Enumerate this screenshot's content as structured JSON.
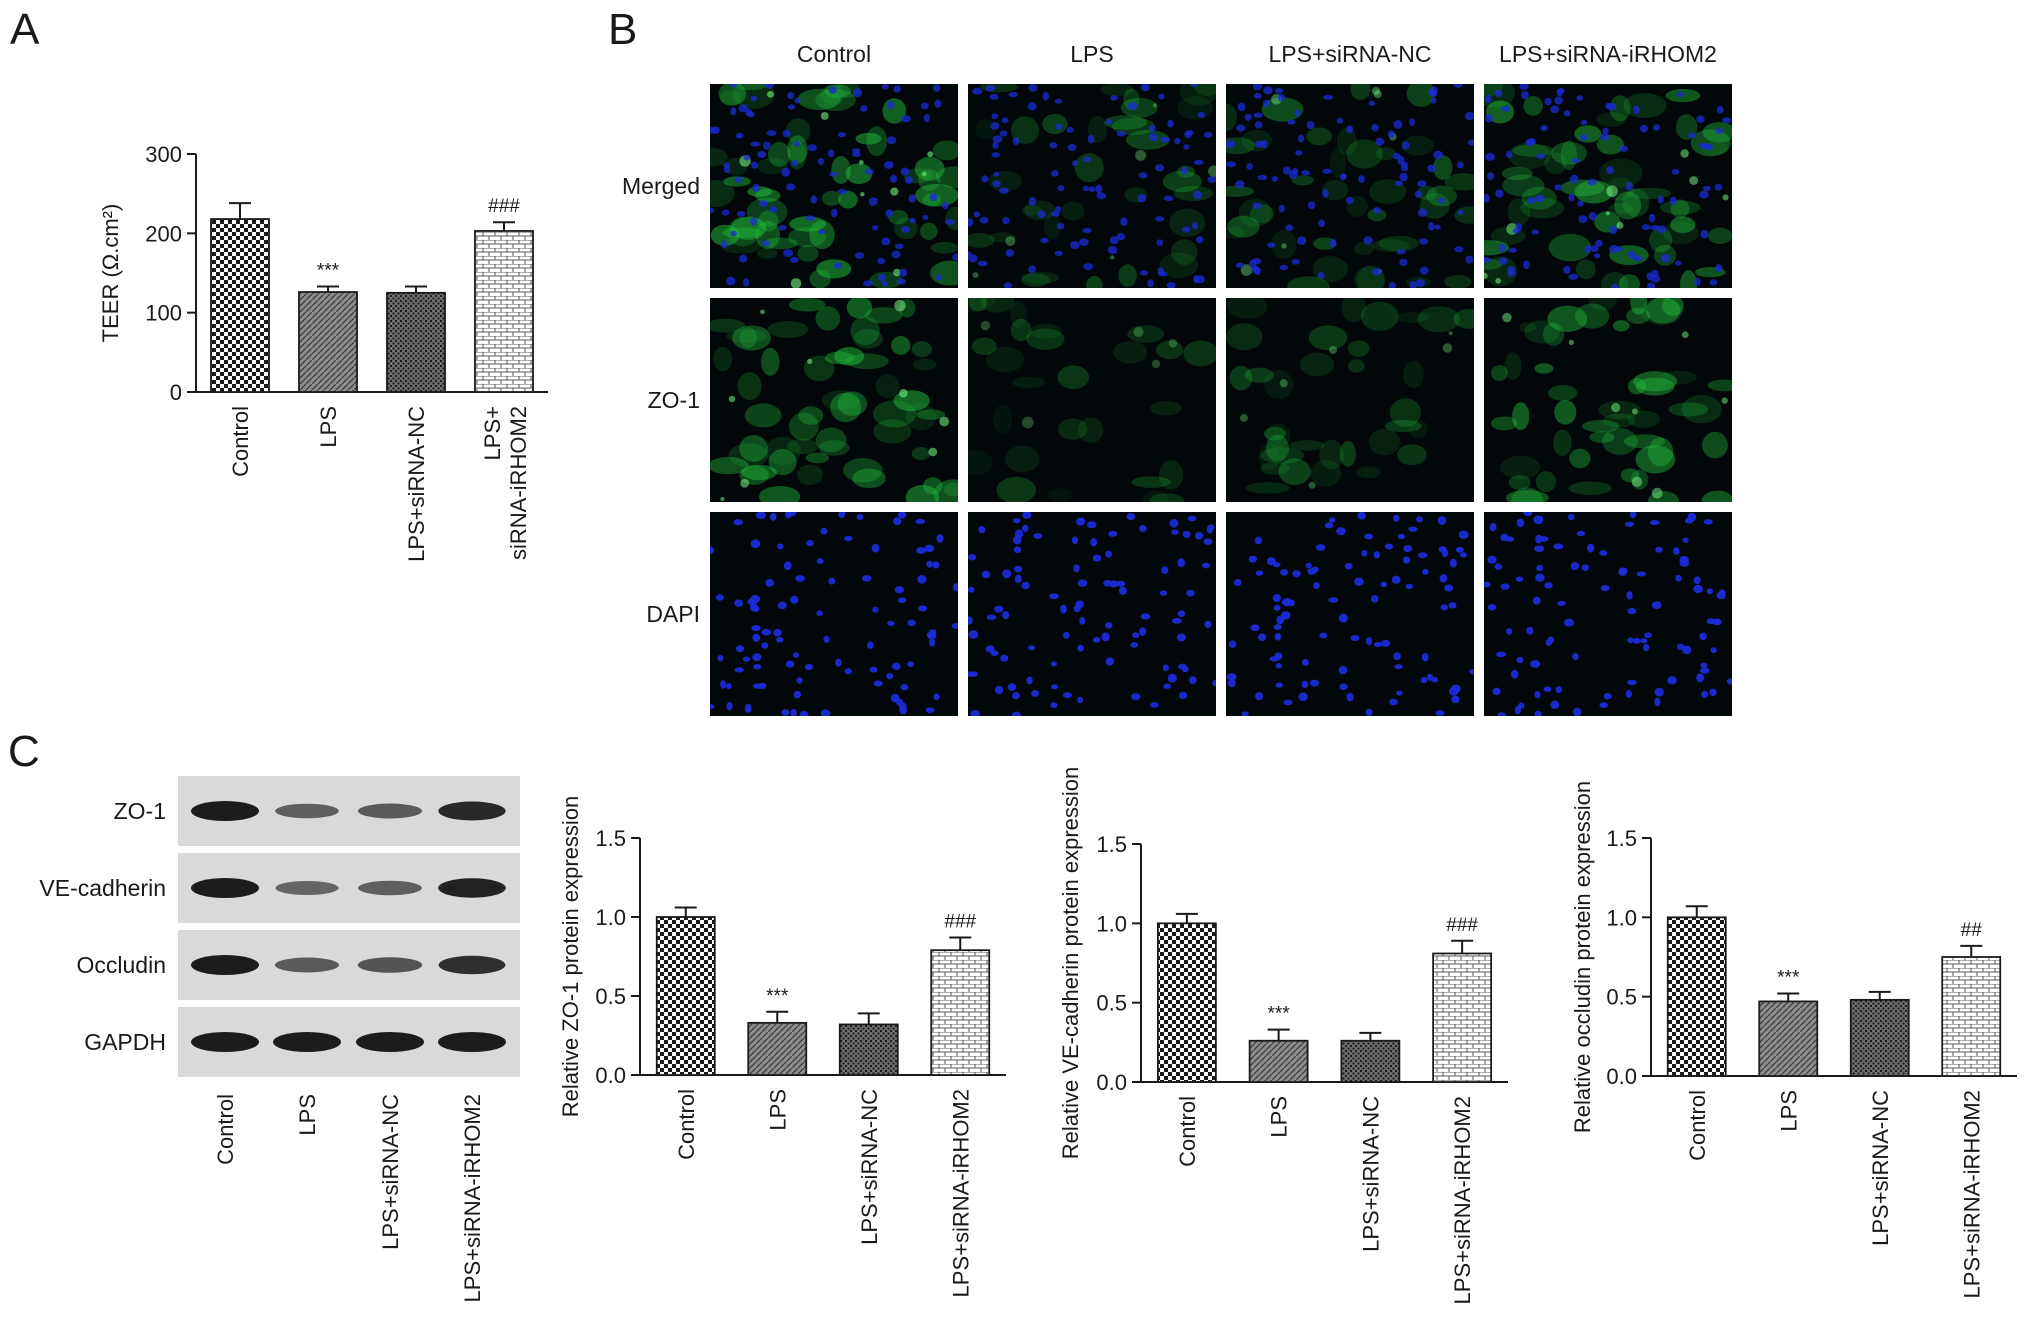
{
  "panels": {
    "a": "A",
    "b": "B",
    "c": "C"
  },
  "colors": {
    "axis": "#1a1a1a",
    "bar_fill": "#9a9a9a",
    "bar_fill_light": "#c8c8c8",
    "micro_green": "#22b83a",
    "micro_blue": "#1a2bd8",
    "micro_bg": "#02080a",
    "blot_bg": "#d9d9d9",
    "band": "#1c1c1c"
  },
  "microscopy": {
    "columns": [
      "Control",
      "LPS",
      "LPS+siRNA-NC",
      "LPS+siRNA-iRHOM2"
    ],
    "rows": [
      "Merged",
      "ZO-1",
      "DAPI"
    ],
    "intensity": [
      [
        0.95,
        0.55,
        0.65,
        0.85
      ],
      [
        0.9,
        0.45,
        0.55,
        0.8
      ],
      [
        1.0,
        1.0,
        1.0,
        1.0
      ]
    ]
  },
  "western_blot": {
    "proteins": [
      "ZO-1",
      "VE-cadherin",
      "Occludin",
      "GAPDH"
    ],
    "lanes": [
      "Control",
      "LPS",
      "LPS+siRNA-NC",
      "LPS+siRNA-iRHOM2"
    ],
    "band_intensity": [
      [
        1.0,
        0.45,
        0.5,
        0.9
      ],
      [
        1.0,
        0.4,
        0.45,
        0.95
      ],
      [
        1.0,
        0.5,
        0.55,
        0.85
      ],
      [
        1.0,
        1.0,
        1.0,
        1.0
      ]
    ]
  },
  "chart_data": [
    {
      "id": "teer",
      "type": "bar",
      "categories": [
        "Control",
        "LPS",
        "LPS+siRNA-NC",
        "LPS+\nsiRNA-iRHOM2"
      ],
      "values": [
        218,
        126,
        125,
        203
      ],
      "errors": [
        20,
        7,
        8,
        11
      ],
      "significance": [
        "",
        "***",
        "",
        "###"
      ],
      "patterns": [
        "checker",
        "diagonal",
        "dots",
        "brick"
      ],
      "title": "",
      "xlabel": "",
      "ylabel": "TEER (Ω.cm²)",
      "ylim": [
        0,
        300
      ],
      "yticks": [
        0,
        100,
        200,
        300
      ],
      "ytick_labels": [
        "0",
        "100",
        "200",
        "300"
      ],
      "grid": false
    },
    {
      "id": "zo1",
      "type": "bar",
      "categories": [
        "Control",
        "LPS",
        "LPS+siRNA-NC",
        "LPS+siRNA-iRHOM2"
      ],
      "values": [
        1.0,
        0.33,
        0.32,
        0.79
      ],
      "errors": [
        0.06,
        0.07,
        0.07,
        0.08
      ],
      "significance": [
        "",
        "***",
        "",
        "###"
      ],
      "patterns": [
        "checker",
        "diagonal",
        "dots",
        "brick"
      ],
      "title": "",
      "xlabel": "",
      "ylabel": "Relative ZO-1 protein expression",
      "ylim": [
        0,
        1.5
      ],
      "yticks": [
        0,
        0.5,
        1.0,
        1.5
      ],
      "ytick_labels": [
        "0.0",
        "0.5",
        "1.0",
        "1.5"
      ],
      "grid": false
    },
    {
      "id": "vecad",
      "type": "bar",
      "categories": [
        "Control",
        "LPS",
        "LPS+siRNA-NC",
        "LPS+siRNA-iRHOM2"
      ],
      "values": [
        1.0,
        0.26,
        0.26,
        0.81
      ],
      "errors": [
        0.06,
        0.07,
        0.05,
        0.08
      ],
      "significance": [
        "",
        "***",
        "",
        "###"
      ],
      "patterns": [
        "checker",
        "diagonal",
        "dots",
        "brick"
      ],
      "title": "",
      "xlabel": "",
      "ylabel": "Relative VE-cadherin protein expression",
      "ylim": [
        0,
        1.5
      ],
      "yticks": [
        0,
        0.5,
        1.0,
        1.5
      ],
      "ytick_labels": [
        "0.0",
        "0.5",
        "1.0",
        "1.5"
      ],
      "grid": false
    },
    {
      "id": "occludin",
      "type": "bar",
      "categories": [
        "Control",
        "LPS",
        "LPS+siRNA-NC",
        "LPS+siRNA-iRHOM2"
      ],
      "values": [
        1.0,
        0.47,
        0.48,
        0.75
      ],
      "errors": [
        0.07,
        0.05,
        0.05,
        0.07
      ],
      "significance": [
        "",
        "***",
        "",
        "##"
      ],
      "patterns": [
        "checker",
        "diagonal",
        "dots",
        "brick"
      ],
      "title": "",
      "xlabel": "",
      "ylabel": "Relative occludin protein expression",
      "ylim": [
        0,
        1.5
      ],
      "yticks": [
        0,
        0.5,
        1.0,
        1.5
      ],
      "ytick_labels": [
        "0.0",
        "0.5",
        "1.0",
        "1.5"
      ],
      "grid": false
    }
  ]
}
